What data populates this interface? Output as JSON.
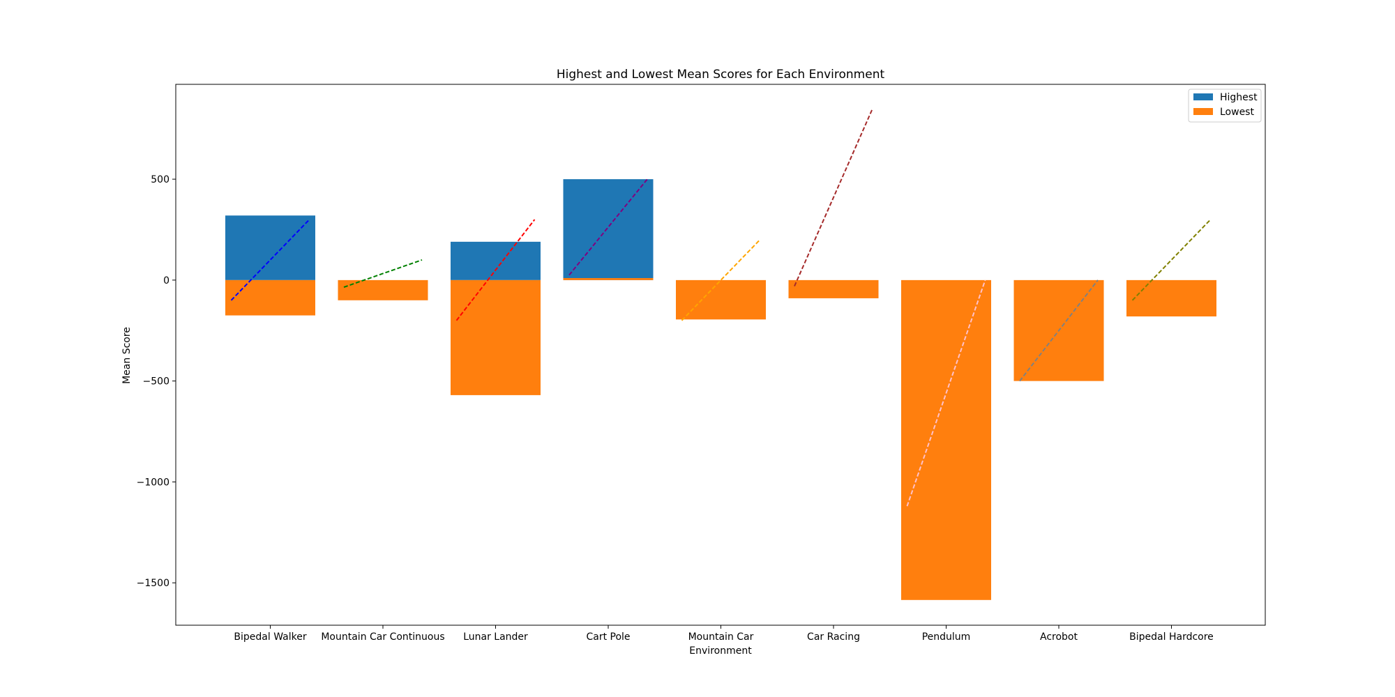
{
  "chart_data": {
    "type": "bar",
    "title": "Highest and Lowest Mean Scores for Each Environment",
    "xlabel": "Environment",
    "ylabel": "Mean Score",
    "ylim": [
      -1710,
      970
    ],
    "yticks": [
      500,
      0,
      -500,
      -1000,
      -1500
    ],
    "ytick_labels": [
      "500",
      "0",
      "−500",
      "−1000",
      "−1500"
    ],
    "categories": [
      "Bipedal Walker",
      "Mountain Car Continuous",
      "Lunar Lander",
      "Cart Pole",
      "Mountain Car",
      "Car Racing",
      "Pendulum",
      "Acrobot",
      "Bipedal Hardcore"
    ],
    "series": [
      {
        "name": "Highest",
        "color": "#1f77b4",
        "values": [
          320,
          0,
          190,
          500,
          0,
          0,
          0,
          0,
          0
        ]
      },
      {
        "name": "Lowest",
        "color": "#ff7f0e",
        "values": [
          -175,
          -100,
          -570,
          10,
          -195,
          -90,
          -1585,
          -500,
          -180
        ]
      }
    ],
    "lines": [
      {
        "color": "#0000ff",
        "style": "dashed",
        "points": [
          [
            -100,
            0
          ],
          [
            300,
            1
          ]
        ]
      },
      {
        "color": "#008000",
        "style": "dashed",
        "points": [
          [
            -35,
            0
          ],
          [
            100,
            1
          ]
        ]
      },
      {
        "color": "#ff0000",
        "style": "dashed",
        "points": [
          [
            -200,
            0
          ],
          [
            300,
            1
          ]
        ]
      },
      {
        "color": "#800080",
        "style": "dashed",
        "points": [
          [
            25,
            0
          ],
          [
            500,
            1
          ]
        ]
      },
      {
        "color": "#ffa500",
        "style": "dashed",
        "points": [
          [
            -200,
            0
          ],
          [
            200,
            1
          ]
        ]
      },
      {
        "color": "#a52a2a",
        "style": "dashed",
        "points": [
          [
            -30,
            0
          ],
          [
            850,
            1
          ]
        ]
      },
      {
        "color": "#ffc0cb",
        "style": "dashed",
        "points": [
          [
            -1120,
            0
          ],
          [
            0,
            1
          ]
        ]
      },
      {
        "color": "#808080",
        "style": "dashed",
        "points": [
          [
            -500,
            0
          ],
          [
            0,
            1
          ]
        ]
      },
      {
        "color": "#808000",
        "style": "dashed",
        "points": [
          [
            -100,
            0
          ],
          [
            300,
            1
          ]
        ]
      }
    ],
    "grid": false,
    "legend": {
      "position": "top-right",
      "entries": [
        "Highest",
        "Lowest"
      ]
    }
  }
}
